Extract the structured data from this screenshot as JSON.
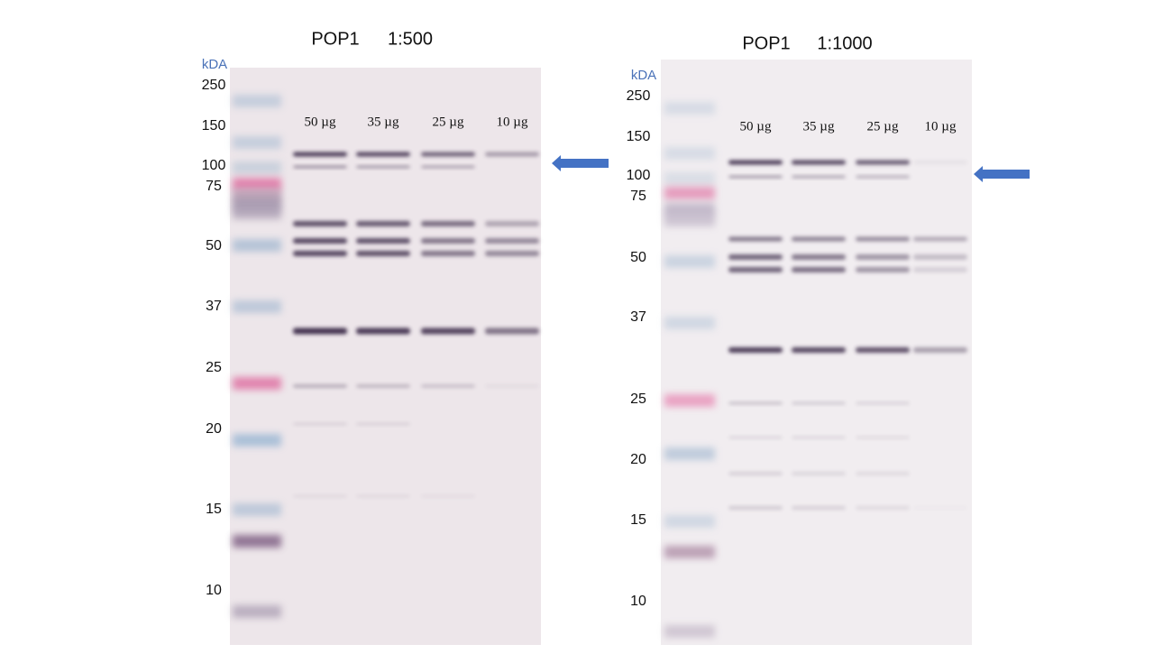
{
  "panels": [
    {
      "title": "POP1",
      "dilution": "1:500",
      "unit_label": "kDA",
      "markers": [
        "250",
        "150",
        "100",
        "75",
        "50",
        "37",
        "25",
        "20",
        "15",
        "10"
      ],
      "lanes": [
        "50 µg",
        "35 µg",
        "25 µg",
        "10 µg"
      ]
    },
    {
      "title": "POP1",
      "dilution": "1:1000",
      "unit_label": "kDA",
      "markers": [
        "250",
        "150",
        "100",
        "75",
        "50",
        "37",
        "25",
        "20",
        "15",
        "10"
      ],
      "lanes": [
        "50 µg",
        "35 µg",
        "25 µg",
        "10 µg"
      ]
    }
  ]
}
